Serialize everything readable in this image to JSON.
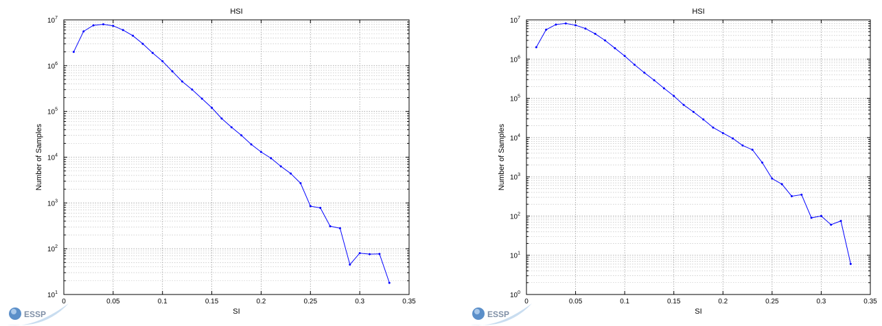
{
  "logo": {
    "text": "ESSP"
  },
  "chart_data": [
    {
      "type": "line",
      "title": "HSI",
      "xlabel": "SI",
      "ylabel": "Number of Samples",
      "xlim": [
        0,
        0.35
      ],
      "ylim_exp": [
        1,
        7
      ],
      "yscale": "log",
      "grid": true,
      "x_ticks": [
        "0",
        "0.05",
        "0.1",
        "0.15",
        "0.2",
        "0.25",
        "0.3",
        "0.35"
      ],
      "y_tick_base": "10",
      "y_tick_exponents": [
        "1",
        "2",
        "3",
        "4",
        "5",
        "6",
        "7"
      ],
      "x": [
        0.01,
        0.02,
        0.03,
        0.04,
        0.05,
        0.06,
        0.07,
        0.08,
        0.09,
        0.1,
        0.11,
        0.12,
        0.13,
        0.14,
        0.15,
        0.16,
        0.17,
        0.18,
        0.19,
        0.2,
        0.21,
        0.22,
        0.23,
        0.24,
        0.25,
        0.26,
        0.27,
        0.28,
        0.29,
        0.3,
        0.31,
        0.32,
        0.33
      ],
      "y": [
        2000000,
        5600000,
        7600000,
        8000000,
        7400000,
        6000000,
        4500000,
        3000000,
        1900000,
        1250000,
        750000,
        450000,
        300000,
        190000,
        120000,
        70000,
        45000,
        30000,
        19000,
        13000,
        9500,
        6300,
        4400,
        2700,
        850,
        780,
        310,
        280,
        45,
        80,
        76,
        77,
        18
      ],
      "series_color": "#0000ff"
    },
    {
      "type": "line",
      "title": "HSI",
      "xlabel": "SI",
      "ylabel": "Number of Samples",
      "xlim": [
        0,
        0.35
      ],
      "ylim_exp": [
        0,
        7
      ],
      "yscale": "log",
      "grid": true,
      "x_ticks": [
        "0",
        "0.05",
        "0.1",
        "0.15",
        "0.2",
        "0.25",
        "0.3",
        "0.35"
      ],
      "y_tick_base": "10",
      "y_tick_exponents": [
        "0",
        "1",
        "2",
        "3",
        "4",
        "5",
        "6",
        "7"
      ],
      "x": [
        0.01,
        0.02,
        0.03,
        0.04,
        0.05,
        0.06,
        0.07,
        0.08,
        0.09,
        0.1,
        0.11,
        0.12,
        0.13,
        0.14,
        0.15,
        0.16,
        0.17,
        0.18,
        0.19,
        0.2,
        0.21,
        0.22,
        0.23,
        0.24,
        0.25,
        0.26,
        0.27,
        0.28,
        0.29,
        0.3,
        0.31,
        0.32,
        0.33
      ],
      "y": [
        2000000,
        5600000,
        7600000,
        8100000,
        7300000,
        6000000,
        4400000,
        3000000,
        1900000,
        1200000,
        720000,
        450000,
        290000,
        180000,
        115000,
        68000,
        45000,
        29000,
        18000,
        13000,
        9500,
        6300,
        4900,
        2300,
        900,
        650,
        320,
        350,
        90,
        100,
        60,
        75,
        6
      ]
    }
  ]
}
